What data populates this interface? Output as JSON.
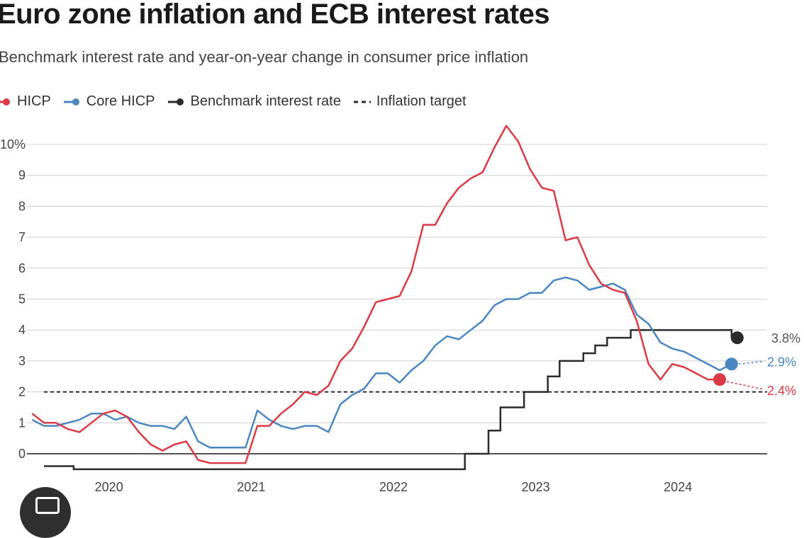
{
  "title": "Euro zone inflation and ECB interest rates",
  "subtitle": "Benchmark interest rate and year-on-year change in consumer price inflation",
  "legend": [
    {
      "label": "HICP",
      "color": "#d93a45",
      "style": "dot"
    },
    {
      "label": "Core HICP",
      "color": "#4a86c0",
      "style": "dot"
    },
    {
      "label": "Benchmark interest rate",
      "color": "#2b2b2b",
      "style": "dot"
    },
    {
      "label": "Inflation target",
      "color": "#2b2b2b",
      "style": "dashed"
    }
  ],
  "chart_data": {
    "type": "line",
    "title": "Euro zone inflation and ECB interest rates",
    "xlabel": "",
    "ylabel": "",
    "xlim": [
      2019.583,
      2024.667
    ],
    "ylim": [
      -0.5,
      10
    ],
    "y_ticks": [
      0,
      1,
      2,
      3,
      4,
      5,
      6,
      7,
      8,
      9,
      10
    ],
    "y_tick_labels": [
      "0",
      "1",
      "2",
      "3",
      "4",
      "5",
      "6",
      "7",
      "8",
      "9",
      "10%"
    ],
    "x_ticks": [
      2020.0,
      2021.0,
      2022.0,
      2023.0,
      2024.0
    ],
    "x_tick_labels": [
      "2020",
      "2021",
      "2022",
      "2023",
      "2024"
    ],
    "inflation_target": 2.0,
    "series": [
      {
        "name": "HICP",
        "color": "#d93a45",
        "start": "2019-07",
        "values": [
          1.3,
          1.0,
          1.0,
          0.8,
          0.7,
          1.0,
          1.3,
          1.4,
          1.2,
          0.7,
          0.3,
          0.1,
          0.3,
          0.4,
          -0.2,
          -0.3,
          -0.3,
          -0.3,
          -0.3,
          0.9,
          0.9,
          1.3,
          1.6,
          2.0,
          1.9,
          2.2,
          3.0,
          3.4,
          4.1,
          4.9,
          5.0,
          5.1,
          5.9,
          7.4,
          7.4,
          8.1,
          8.6,
          8.9,
          9.1,
          9.9,
          10.6,
          10.1,
          9.2,
          8.6,
          8.5,
          6.9,
          7.0,
          6.1,
          5.5,
          5.3,
          5.2,
          4.3,
          2.9,
          2.4,
          2.9,
          2.8,
          2.6,
          2.4,
          2.4
        ],
        "end_label": "2.4%"
      },
      {
        "name": "Core HICP",
        "color": "#4a86c0",
        "start": "2019-07",
        "values": [
          1.1,
          0.9,
          0.9,
          1.0,
          1.1,
          1.3,
          1.3,
          1.1,
          1.2,
          1.0,
          0.9,
          0.9,
          0.8,
          1.2,
          0.4,
          0.2,
          0.2,
          0.2,
          0.2,
          1.4,
          1.1,
          0.9,
          0.8,
          0.9,
          0.9,
          0.7,
          1.6,
          1.9,
          2.1,
          2.6,
          2.6,
          2.3,
          2.7,
          3.0,
          3.5,
          3.8,
          3.7,
          4.0,
          4.3,
          4.8,
          5.0,
          5.0,
          5.2,
          5.2,
          5.6,
          5.7,
          5.6,
          5.3,
          5.4,
          5.5,
          5.3,
          4.5,
          4.2,
          3.6,
          3.4,
          3.3,
          3.1,
          2.9,
          2.7,
          2.9
        ],
        "end_label": "2.9%"
      },
      {
        "name": "Benchmark interest rate",
        "color": "#2b2b2b",
        "type": "step",
        "points": [
          [
            2019.583,
            -0.4
          ],
          [
            2019.792,
            -0.5
          ],
          [
            2022.542,
            0.0
          ],
          [
            2022.708,
            0.75
          ],
          [
            2022.792,
            1.5
          ],
          [
            2022.958,
            2.0
          ],
          [
            2023.125,
            2.5
          ],
          [
            2023.208,
            3.0
          ],
          [
            2023.375,
            3.25
          ],
          [
            2023.458,
            3.5
          ],
          [
            2023.542,
            3.75
          ],
          [
            2023.708,
            4.0
          ],
          [
            2024.375,
            4.0
          ],
          [
            2024.417,
            3.75
          ]
        ],
        "end_label": "3.8%"
      }
    ]
  }
}
